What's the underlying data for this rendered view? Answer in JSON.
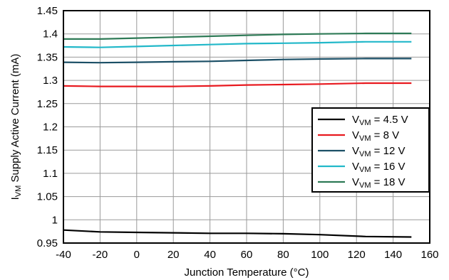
{
  "chart_data": {
    "type": "line",
    "xlabel": "Junction Temperature (°C)",
    "ylabel": {
      "main": "I",
      "sub": "VM",
      "rest": " Supply Active Current (mA)"
    },
    "xlim": [
      -40,
      160
    ],
    "ylim": [
      0.95,
      1.45
    ],
    "xticks": [
      "-40",
      "-20",
      "0",
      "20",
      "40",
      "60",
      "80",
      "100",
      "120",
      "140",
      "160"
    ],
    "yticks": [
      "0.95",
      "1",
      "1.05",
      "1.1",
      "1.15",
      "1.2",
      "1.25",
      "1.3",
      "1.35",
      "1.4",
      "1.45"
    ],
    "grid": true,
    "legend_position": "right",
    "series": [
      {
        "name": "VVM = 4.5 V",
        "label_main": "V",
        "label_sub": "VM",
        "label_rest": " = 4.5 V",
        "color": "#000000",
        "x": [
          -40,
          -20,
          0,
          20,
          40,
          60,
          80,
          100,
          125,
          150
        ],
        "y": [
          0.978,
          0.974,
          0.973,
          0.972,
          0.971,
          0.971,
          0.97,
          0.968,
          0.964,
          0.963
        ]
      },
      {
        "name": "VVM = 8 V",
        "label_main": "V",
        "label_sub": "VM",
        "label_rest": " = 8 V",
        "color": "#e8191f",
        "x": [
          -40,
          -20,
          0,
          20,
          40,
          60,
          80,
          100,
          125,
          150
        ],
        "y": [
          1.288,
          1.287,
          1.287,
          1.287,
          1.288,
          1.29,
          1.291,
          1.292,
          1.294,
          1.294
        ]
      },
      {
        "name": "VVM = 12 V",
        "label_main": "V",
        "label_sub": "VM",
        "label_rest": " = 12 V",
        "color": "#1b4f66",
        "x": [
          -40,
          -20,
          0,
          20,
          40,
          60,
          80,
          100,
          125,
          150
        ],
        "y": [
          1.339,
          1.338,
          1.339,
          1.34,
          1.341,
          1.343,
          1.345,
          1.346,
          1.347,
          1.347
        ]
      },
      {
        "name": "VVM = 16 V",
        "label_main": "V",
        "label_sub": "VM",
        "label_rest": " = 16 V",
        "color": "#22b8c9",
        "x": [
          -40,
          -20,
          0,
          20,
          40,
          60,
          80,
          100,
          125,
          150
        ],
        "y": [
          1.372,
          1.371,
          1.373,
          1.375,
          1.377,
          1.379,
          1.38,
          1.381,
          1.383,
          1.383
        ]
      },
      {
        "name": "VVM = 18 V",
        "label_main": "V",
        "label_sub": "VM",
        "label_rest": " = 18 V",
        "color": "#2e7a56",
        "x": [
          -40,
          -20,
          0,
          20,
          40,
          60,
          80,
          100,
          125,
          150
        ],
        "y": [
          1.389,
          1.389,
          1.391,
          1.393,
          1.395,
          1.397,
          1.399,
          1.4,
          1.401,
          1.401
        ]
      }
    ]
  }
}
